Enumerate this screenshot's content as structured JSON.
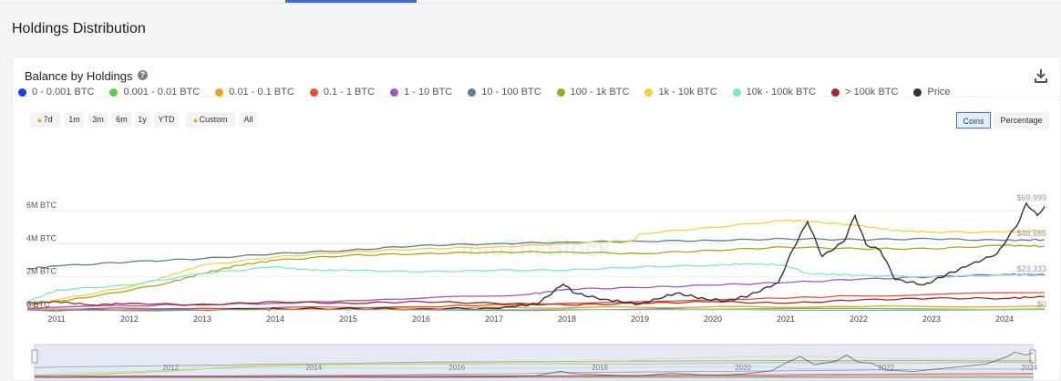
{
  "page": {
    "section_title": "Holdings Distribution"
  },
  "card": {
    "title": "Balance by Holdings"
  },
  "icons": {
    "help": "help-circle-icon",
    "download": "download-icon",
    "lock": "lock-icon"
  },
  "range_buttons": [
    {
      "label": "7d",
      "locked": true
    },
    {
      "label": "1m",
      "locked": false
    },
    {
      "label": "3m",
      "locked": false
    },
    {
      "label": "6m",
      "locked": false
    },
    {
      "label": "1y",
      "locked": false
    },
    {
      "label": "YTD",
      "locked": false
    },
    {
      "label": "Custom",
      "locked": true
    },
    {
      "label": "All",
      "locked": false
    }
  ],
  "unit_toggle": {
    "options": [
      "Coins",
      "Percentage"
    ],
    "selected": "Coins"
  },
  "watermark": "IntoTheBlock",
  "chart_data": {
    "type": "line",
    "x_ticks": [
      "2011",
      "2012",
      "2013",
      "2014",
      "2015",
      "2016",
      "2017",
      "2018",
      "2019",
      "2020",
      "2021",
      "2022",
      "2023",
      "2024"
    ],
    "left_axis": {
      "ticks": [
        "0 BTC",
        "2M BTC",
        "4M BTC",
        "6M BTC"
      ],
      "range": [
        0,
        7000000
      ]
    },
    "right_axis": {
      "ticks": [
        "$0",
        "$23,333",
        "$46,666",
        "$69,999"
      ],
      "range": [
        0,
        76000
      ]
    },
    "xlim": [
      2010.6,
      2024.55
    ],
    "grid": true,
    "legend_position": "top",
    "series": [
      {
        "name": "0 - 0.001 BTC",
        "color": "#1c3ce0",
        "axis": "left",
        "x": [
          2010.6,
          2024.55
        ],
        "y": [
          0,
          10000
        ]
      },
      {
        "name": "0.001 - 0.01 BTC",
        "color": "#5ccb4a",
        "axis": "left",
        "x": [
          2010.6,
          2014,
          2018,
          2024.55
        ],
        "y": [
          0,
          20000,
          40000,
          60000
        ]
      },
      {
        "name": "0.01 - 0.1 BTC",
        "color": "#f0a323",
        "axis": "left",
        "x": [
          2010.6,
          2013,
          2016,
          2019,
          2022,
          2024.55
        ],
        "y": [
          20000,
          50000,
          100000,
          160000,
          200000,
          230000
        ]
      },
      {
        "name": "0.1 - 1 BTC",
        "color": "#e8503a",
        "axis": "left",
        "x": [
          2010.6,
          2013,
          2016,
          2018,
          2020,
          2022,
          2024.55
        ],
        "y": [
          50000,
          100000,
          200000,
          400000,
          600000,
          850000,
          1050000
        ]
      },
      {
        "name": "1 - 10 BTC",
        "color": "#9b59c6",
        "axis": "left",
        "x": [
          2010.6,
          2012,
          2014,
          2016,
          2017.5,
          2018,
          2019,
          2020,
          2021,
          2022,
          2023,
          2024,
          2024.55
        ],
        "y": [
          100000,
          250000,
          400000,
          700000,
          950000,
          1250000,
          1350000,
          1500000,
          1650000,
          1850000,
          2000000,
          2150000,
          2100000
        ]
      },
      {
        "name": "10 - 100 BTC",
        "color": "#5b7f8f",
        "axis": "left",
        "x": [
          2010.6,
          2011,
          2012,
          2013,
          2014,
          2015,
          2016,
          2017,
          2018,
          2019,
          2020,
          2021,
          2022,
          2023,
          2024,
          2024.55
        ],
        "y": [
          2500000,
          2650000,
          2900000,
          3100000,
          3400000,
          3600000,
          3900000,
          4000000,
          4100000,
          4150000,
          4200000,
          4300000,
          4250000,
          4300000,
          4200000,
          4250000
        ]
      },
      {
        "name": "100 - 1k BTC",
        "color": "#a6a61e",
        "axis": "left",
        "x": [
          2010.6,
          2011.5,
          2012.5,
          2013,
          2013.5,
          2014,
          2015,
          2016,
          2017,
          2018,
          2019,
          2020,
          2021,
          2022,
          2023,
          2024,
          2024.55
        ],
        "y": [
          300000,
          800000,
          1600000,
          2200000,
          2700000,
          3000000,
          3300000,
          3400000,
          3500000,
          3500000,
          3400000,
          3600000,
          3800000,
          3700000,
          3700000,
          3900000,
          3850000
        ]
      },
      {
        "name": "1k - 10k BTC",
        "color": "#f4d03f",
        "axis": "left",
        "x": [
          2010.6,
          2011,
          2012,
          2012.5,
          2013,
          2014,
          2015,
          2016,
          2017,
          2018,
          2018.9,
          2019,
          2020,
          2021,
          2021.2,
          2022,
          2022.5,
          2023,
          2024,
          2024.55
        ],
        "y": [
          200000,
          600000,
          1400000,
          2000000,
          2700000,
          3200000,
          3500000,
          3700000,
          3800000,
          4000000,
          4200000,
          4600000,
          5000000,
          5400000,
          5400000,
          5100000,
          4800000,
          4700000,
          4700000,
          4800000
        ]
      },
      {
        "name": "10k - 100k BTC",
        "color": "#7fe8c3",
        "axis": "left",
        "x": [
          2010.6,
          2011,
          2012,
          2013,
          2014,
          2014.5,
          2015,
          2016,
          2017,
          2018,
          2019,
          2020,
          2020.5,
          2021,
          2021.3,
          2022,
          2023,
          2024,
          2024.55
        ],
        "y": [
          500000,
          1200000,
          1500000,
          2200000,
          2600000,
          2400000,
          2400000,
          2300000,
          2400000,
          2400000,
          2600000,
          2700000,
          2800000,
          2700000,
          2200000,
          2100000,
          2000000,
          2100000,
          2200000
        ]
      },
      {
        "name": "> 100k BTC",
        "color": "#a52a2a",
        "axis": "left",
        "x": [
          2010.6,
          2011,
          2011.5,
          2012,
          2013,
          2014,
          2015,
          2016,
          2017,
          2018,
          2019,
          2020,
          2021,
          2022,
          2023,
          2024,
          2024.55
        ],
        "y": [
          400000,
          500000,
          300000,
          400000,
          300000,
          500000,
          400000,
          500000,
          400000,
          300000,
          400000,
          500000,
          400000,
          600000,
          700000,
          700000,
          800000
        ]
      },
      {
        "name": "Price",
        "color": "#333333",
        "axis": "right",
        "x": [
          2010.6,
          2013.9,
          2014,
          2016,
          2017,
          2017.6,
          2017.95,
          2018.1,
          2018.5,
          2019,
          2019.5,
          2019.9,
          2020.2,
          2020.5,
          2020.9,
          2021.1,
          2021.3,
          2021.5,
          2021.8,
          2021.95,
          2022.1,
          2022.3,
          2022.5,
          2022.9,
          2023.2,
          2023.5,
          2023.9,
          2024.2,
          2024.3,
          2024.45,
          2024.55
        ],
        "y": [
          0,
          200,
          800,
          600,
          1000,
          4000,
          17000,
          11000,
          7000,
          3800,
          11000,
          7200,
          6000,
          9500,
          18000,
          40000,
          58000,
          35000,
          45000,
          62000,
          43000,
          39000,
          20000,
          16500,
          23000,
          29000,
          37000,
          58000,
          70000,
          62000,
          68000
        ]
      }
    ]
  }
}
